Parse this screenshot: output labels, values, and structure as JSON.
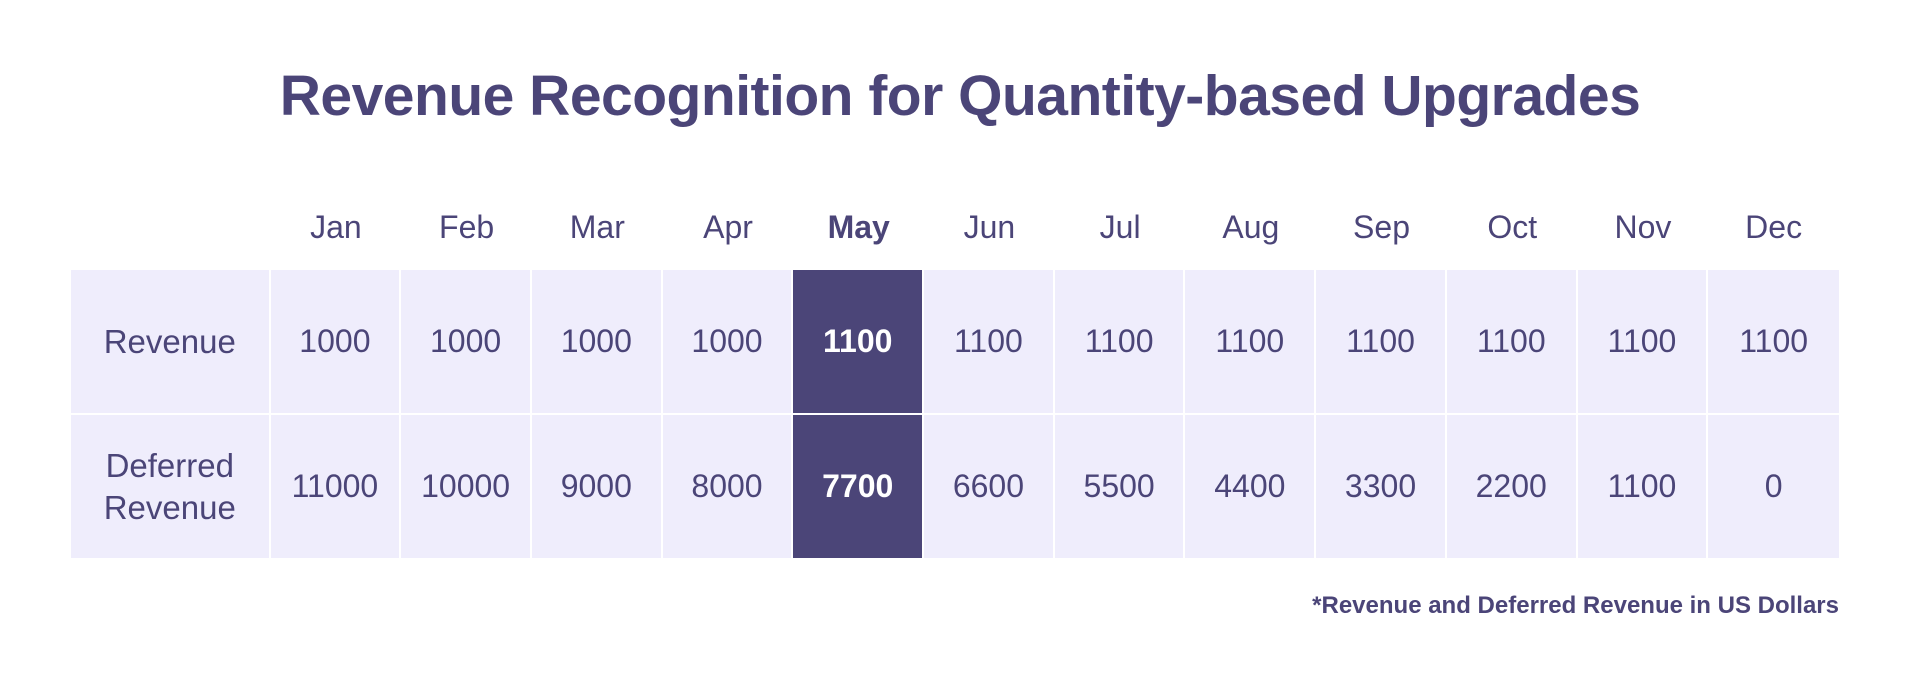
{
  "title": "Revenue Recognition for Quantity-based Upgrades",
  "footnote": "*Revenue and Deferred Revenue in US Dollars",
  "colors": {
    "text": "#4b4578",
    "row_background": "#efedfc",
    "highlight_background": "#4b4578",
    "highlight_text": "#ffffff"
  },
  "chart_data": {
    "type": "table",
    "title": "Revenue Recognition for Quantity-based Upgrades",
    "columns": [
      "Jan",
      "Feb",
      "Mar",
      "Apr",
      "May",
      "Jun",
      "Jul",
      "Aug",
      "Sep",
      "Oct",
      "Nov",
      "Dec"
    ],
    "highlight_column": "May",
    "rows": [
      {
        "label": "Revenue",
        "values": [
          "1000",
          "1000",
          "1000",
          "1000",
          "1100",
          "1100",
          "1100",
          "1100",
          "1100",
          "1100",
          "1100",
          "1100"
        ]
      },
      {
        "label": "Deferred\nRevenue",
        "values": [
          "11000",
          "10000",
          "9000",
          "8000",
          "7700",
          "6600",
          "5500",
          "4400",
          "3300",
          "2200",
          "1100",
          "0"
        ]
      }
    ],
    "note": "*Revenue and Deferred Revenue in US Dollars"
  }
}
